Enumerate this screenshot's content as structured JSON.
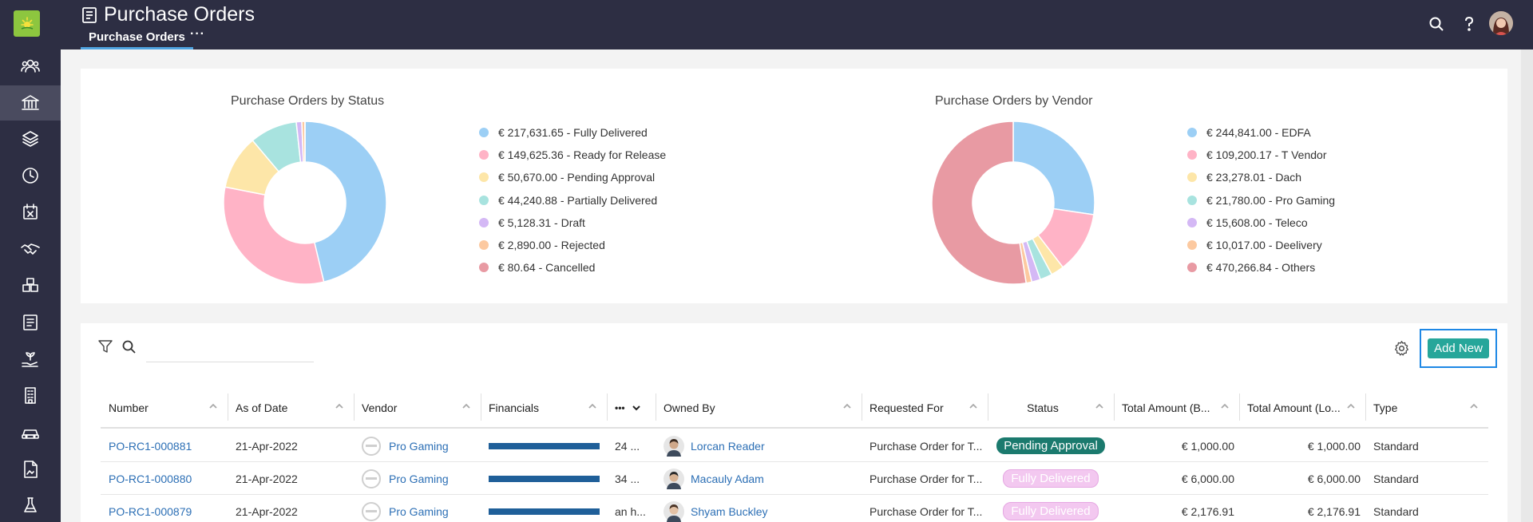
{
  "app": {
    "title": "Purchase Orders",
    "tab_active": "Purchase Orders",
    "tab_more": "···"
  },
  "charts": {
    "status": {
      "title": "Purchase Orders by Status",
      "legend": [
        "€ 217,631.65 - Fully Delivered",
        "€ 149,625.36 - Ready for Release",
        "€ 50,670.00 - Pending Approval",
        "€ 44,240.88 - Partially Delivered",
        "€ 5,128.31 - Draft",
        "€ 2,890.00 - Rejected",
        "€ 80.64 - Cancelled"
      ]
    },
    "vendor": {
      "title": "Purchase Orders by Vendor",
      "legend": [
        "€ 244,841.00 - EDFA",
        "€ 109,200.17 - T Vendor",
        "€ 23,278.01 - Dach",
        "€ 21,780.00 - Pro Gaming",
        "€ 15,608.00 - Teleco",
        "€ 10,017.00 - Deelivery",
        "€ 470,266.84 - Others"
      ]
    },
    "colors": [
      "#9ccff5",
      "#ffb3c6",
      "#fde6a8",
      "#a8e3df",
      "#d4b8f5",
      "#fcc9a0",
      "#e89aa3"
    ]
  },
  "chart_data": [
    {
      "type": "pie",
      "title": "Purchase Orders by Status",
      "categories": [
        "Fully Delivered",
        "Ready for Release",
        "Pending Approval",
        "Partially Delivered",
        "Draft",
        "Rejected",
        "Cancelled"
      ],
      "values": [
        217631.65,
        149625.36,
        50670.0,
        44240.88,
        5128.31,
        2890.0,
        80.64
      ],
      "legend_position": "right"
    },
    {
      "type": "pie",
      "title": "Purchase Orders by Vendor",
      "categories": [
        "EDFA",
        "T Vendor",
        "Dach",
        "Pro Gaming",
        "Teleco",
        "Deelivery",
        "Others"
      ],
      "values": [
        244841.0,
        109200.17,
        23278.01,
        21780.0,
        15608.0,
        10017.0,
        470266.84
      ],
      "legend_position": "right"
    }
  ],
  "toolbar": {
    "search_placeholder": "",
    "search_value": "",
    "add_new": "Add New"
  },
  "table": {
    "columns": [
      "Number",
      "As of Date",
      "Vendor",
      "Financials",
      "•••",
      "Owned By",
      "Requested For",
      "Status",
      "Total Amount (B...",
      "Total Amount (Lo...",
      "Type"
    ],
    "rows": [
      {
        "number": "PO-RC1-000881",
        "date": "21-Apr-2022",
        "vendor": "Pro Gaming",
        "extra": "24 ...",
        "owner": "Lorcan Reader",
        "requested_for": "Purchase Order for T...",
        "status": "Pending Approval",
        "total_b": "€ 1,000.00",
        "total_l": "€ 1,000.00",
        "type": "Standard"
      },
      {
        "number": "PO-RC1-000880",
        "date": "21-Apr-2022",
        "vendor": "Pro Gaming",
        "extra": "34 ...",
        "owner": "Macauly Adam",
        "requested_for": "Purchase Order for T...",
        "status": "Fully Delivered",
        "total_b": "€ 6,000.00",
        "total_l": "€ 6,000.00",
        "type": "Standard"
      },
      {
        "number": "PO-RC1-000879",
        "date": "21-Apr-2022",
        "vendor": "Pro Gaming",
        "extra": "an h...",
        "owner": "Shyam Buckley",
        "requested_for": "Purchase Order for T...",
        "status": "Fully Delivered",
        "total_b": "€ 2,176.91",
        "total_l": "€ 2,176.91",
        "type": "Standard"
      }
    ]
  }
}
